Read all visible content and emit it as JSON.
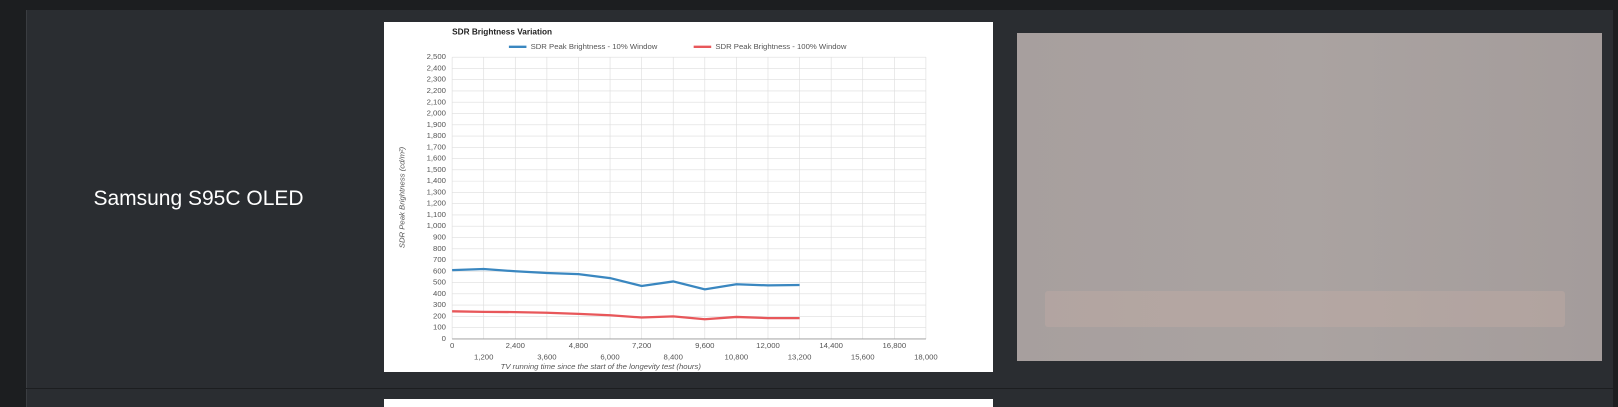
{
  "row": {
    "label": "Samsung S95C OLED"
  },
  "chart_data": {
    "type": "line",
    "title": "SDR Brightness Variation",
    "x_label": "TV running time since the start of the longevity test (hours)",
    "y_label": "SDR Peak Brightness (cd/m²)",
    "x": [
      0,
      1200,
      2400,
      3600,
      4800,
      6000,
      7200,
      8400,
      9600,
      10800,
      12000,
      13200
    ],
    "series": [
      {
        "name": "SDR Peak Brightness - 10% Window",
        "color": "#3a87c0",
        "values": [
          610,
          620,
          600,
          585,
          575,
          540,
          470,
          510,
          440,
          485,
          475,
          478
        ]
      },
      {
        "name": "SDR Peak Brightness - 100% Window",
        "color": "#e8575a",
        "values": [
          245,
          240,
          238,
          232,
          222,
          210,
          190,
          200,
          175,
          195,
          185,
          185
        ]
      }
    ],
    "xlim": [
      0,
      18000
    ],
    "xticks": [
      0,
      {
        "value": 1200,
        "label": "1,200"
      },
      {
        "value": 2400,
        "label": "2,400"
      },
      {
        "value": 3600,
        "label": "3,600"
      },
      {
        "value": 4800,
        "label": "4,800"
      },
      {
        "value": 6000,
        "label": "6,000"
      },
      {
        "value": 7200,
        "label": "7,200"
      },
      {
        "value": 8400,
        "label": "8,400"
      },
      {
        "value": 9600,
        "label": "9,600"
      },
      {
        "value": 10800,
        "label": "10,800"
      },
      {
        "value": 12000,
        "label": "12,000"
      },
      {
        "value": 13200,
        "label": "13,200"
      },
      {
        "value": 14400,
        "label": "14,400"
      },
      {
        "value": 15600,
        "label": "15,600"
      },
      {
        "value": 16800,
        "label": "16,800"
      },
      {
        "value": 18000,
        "label": "18,000"
      }
    ],
    "ylim": [
      0,
      2500
    ],
    "yticks": [
      0,
      100,
      200,
      300,
      400,
      500,
      600,
      700,
      800,
      900,
      {
        "value": 1000,
        "label": "1,000"
      },
      {
        "value": 1100,
        "label": "1,100"
      },
      {
        "value": 1200,
        "label": "1,200"
      },
      {
        "value": 1300,
        "label": "1,300"
      },
      {
        "value": 1400,
        "label": "1,400"
      },
      {
        "value": 1500,
        "label": "1,500"
      },
      {
        "value": 1600,
        "label": "1,600"
      },
      {
        "value": 1700,
        "label": "1,700"
      },
      {
        "value": 1800,
        "label": "1,800"
      },
      {
        "value": 1900,
        "label": "1,900"
      },
      {
        "value": 2000,
        "label": "2,000"
      },
      {
        "value": 2100,
        "label": "2,100"
      },
      {
        "value": 2200,
        "label": "2,200"
      },
      {
        "value": 2300,
        "label": "2,300"
      },
      {
        "value": 2400,
        "label": "2,400"
      },
      {
        "value": 2500,
        "label": "2,500"
      }
    ],
    "grid": true,
    "legend": "top"
  }
}
